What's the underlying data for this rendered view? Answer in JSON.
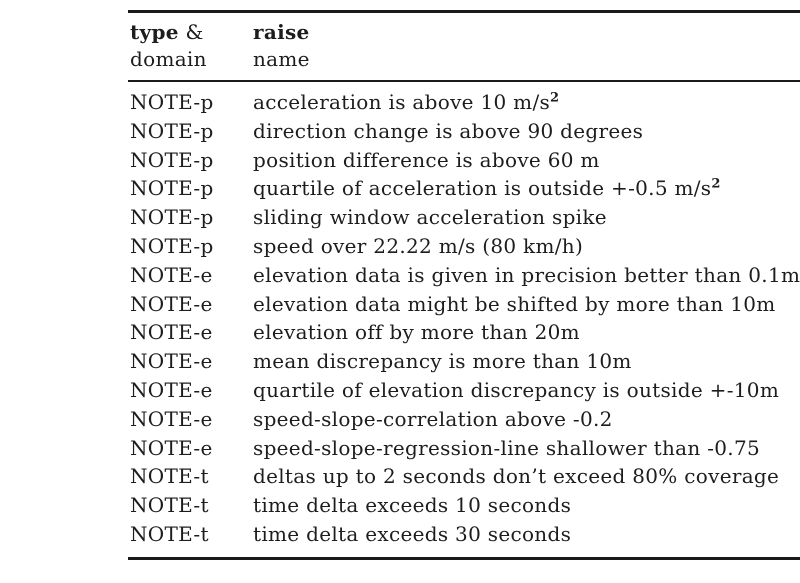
{
  "colors": {
    "background": "#ffffff",
    "text": "#1d1d1f",
    "rule": "#1b1b1b"
  },
  "table": {
    "header": {
      "col1": {
        "bold_part": "type",
        "rest_part": " &",
        "line2": "domain"
      },
      "col2": {
        "line1": "raise",
        "line2": "name"
      }
    },
    "rows": [
      {
        "type": "NOTE-p",
        "raise_name": "acceleration is above 10 m/s",
        "superscript": "2"
      },
      {
        "type": "NOTE-p",
        "raise_name": "direction change is above 90 degrees"
      },
      {
        "type": "NOTE-p",
        "raise_name": "position difference is above 60 m"
      },
      {
        "type": "NOTE-p",
        "raise_name": "quartile of acceleration is outside +-0.5 m/s",
        "superscript": "2"
      },
      {
        "type": "NOTE-p",
        "raise_name": "sliding window acceleration spike"
      },
      {
        "type": "NOTE-p",
        "raise_name": "speed over 22.22 m/s (80 km/h)"
      },
      {
        "type": "NOTE-e",
        "raise_name": "elevation data is given in precision better than 0.1m"
      },
      {
        "type": "NOTE-e",
        "raise_name": "elevation data might be shifted by more than 10m"
      },
      {
        "type": "NOTE-e",
        "raise_name": "elevation off by more than 20m"
      },
      {
        "type": "NOTE-e",
        "raise_name": "mean discrepancy is more than 10m"
      },
      {
        "type": "NOTE-e",
        "raise_name": "quartile of elevation discrepancy is outside +-10m"
      },
      {
        "type": "NOTE-e",
        "raise_name": "speed-slope-correlation above -0.2"
      },
      {
        "type": "NOTE-e",
        "raise_name": "speed-slope-regression-line shallower than -0.75"
      },
      {
        "type": "NOTE-t",
        "raise_name": "deltas up to 2 seconds don’t exceed 80% coverage"
      },
      {
        "type": "NOTE-t",
        "raise_name": "time delta exceeds 10 seconds"
      },
      {
        "type": "NOTE-t",
        "raise_name": "time delta exceeds 30 seconds"
      }
    ]
  }
}
